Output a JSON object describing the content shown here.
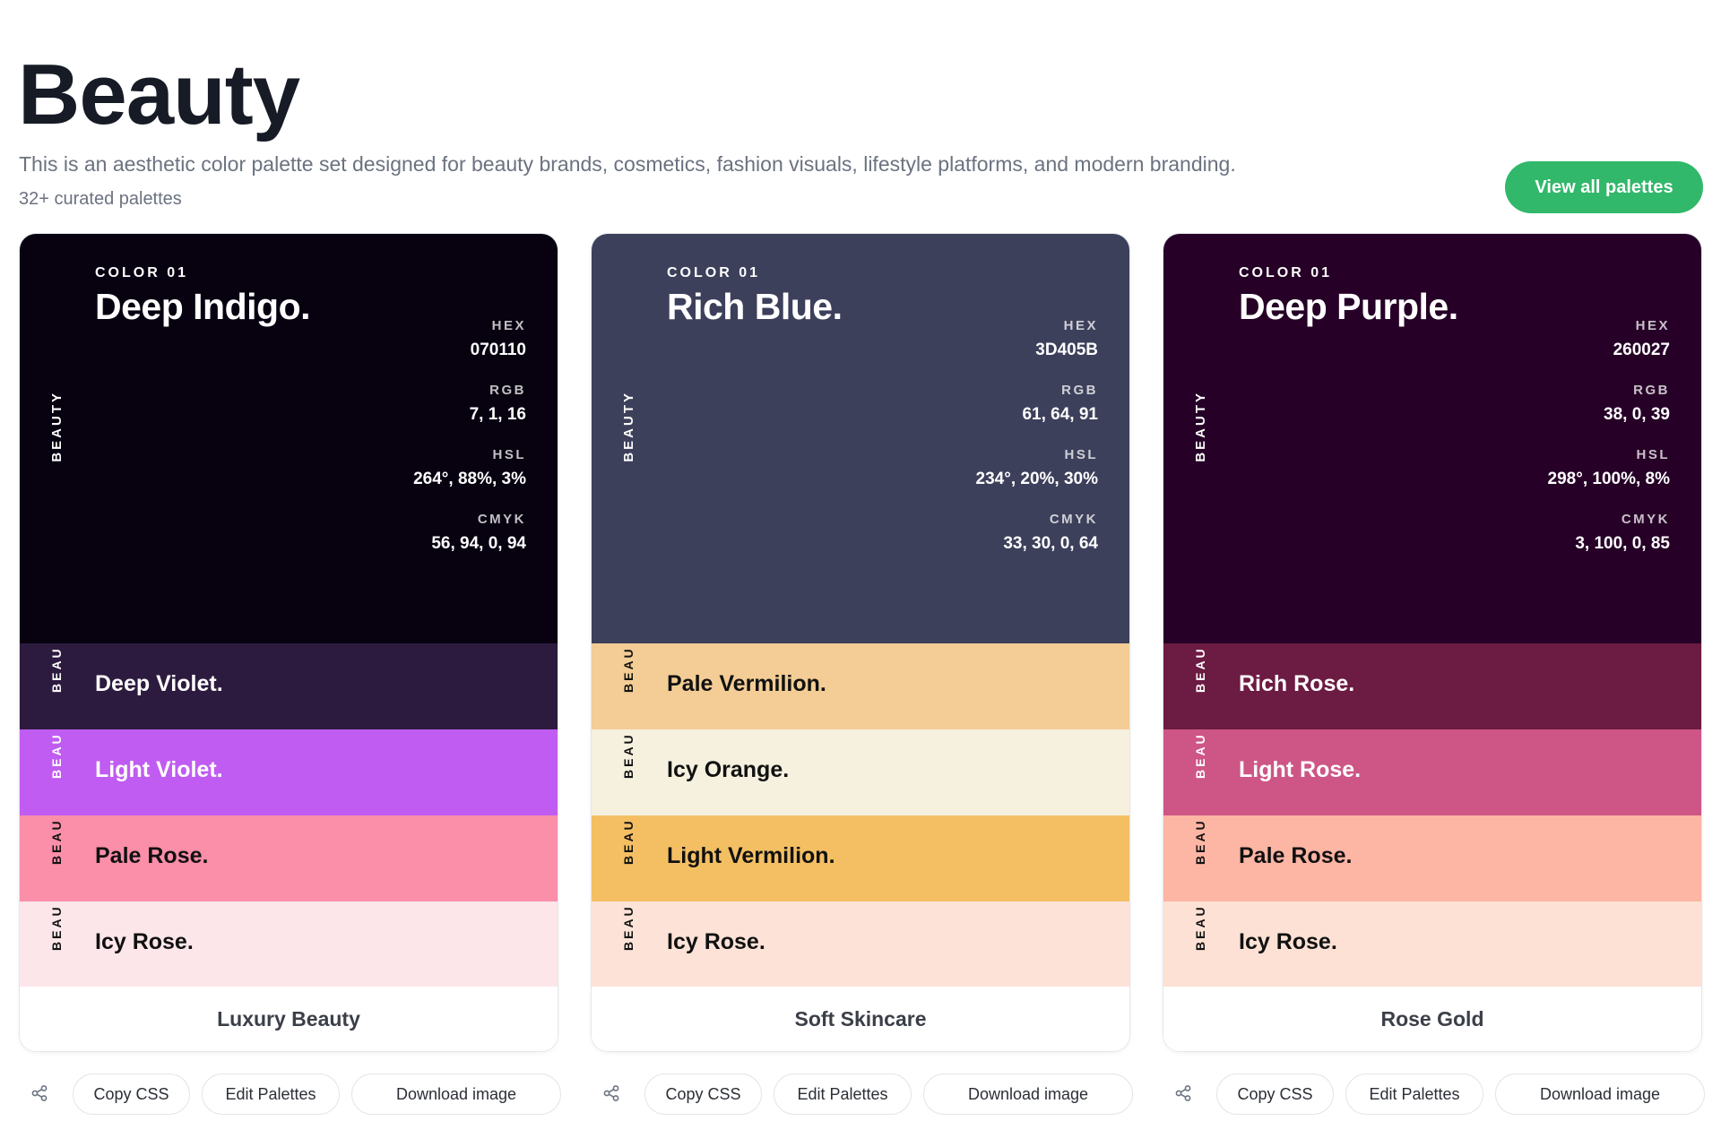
{
  "header": {
    "title": "Beauty",
    "description": "This is an aesthetic color palette set designed for beauty brands, cosmetics, fashion visuals, lifestyle platforms, and modern branding.",
    "count": "32+ curated palettes",
    "view_all_label": "View all palettes",
    "view_all_color": "#31b86a"
  },
  "cards": [
    {
      "side_label": "BEAUTY",
      "kicker": "COLOR 01",
      "name": "Deep Indigo.",
      "color": "#070110",
      "text_color": "#ffffff",
      "specs": [
        {
          "label": "HEX",
          "value": "070110"
        },
        {
          "label": "RGB",
          "value": "7, 1, 16"
        },
        {
          "label": "HSL",
          "value": "264°, 88%, 3%"
        },
        {
          "label": "CMYK",
          "value": "56, 94, 0, 94"
        }
      ],
      "bands": [
        {
          "side_label": "BEAU",
          "name": "Deep Violet.",
          "color": "#2d1b3f",
          "text_color": "#ffffff"
        },
        {
          "side_label": "BEAU",
          "name": "Light Violet.",
          "color": "#c05cf1",
          "text_color": "#ffffff"
        },
        {
          "side_label": "BEAU",
          "name": "Pale Rose.",
          "color": "#fb8ea9",
          "text_color": "#111111"
        },
        {
          "side_label": "BEAU",
          "name": "Icy Rose.",
          "color": "#fde6ea",
          "text_color": "#111111"
        }
      ],
      "title": "Luxury Beauty"
    },
    {
      "side_label": "BEAUTY",
      "kicker": "COLOR 01",
      "name": "Rich Blue.",
      "color": "#3d405b",
      "text_color": "#ffffff",
      "specs": [
        {
          "label": "HEX",
          "value": "3D405B"
        },
        {
          "label": "RGB",
          "value": "61, 64, 91"
        },
        {
          "label": "HSL",
          "value": "234°, 20%, 30%"
        },
        {
          "label": "CMYK",
          "value": "33, 30, 0, 64"
        }
      ],
      "bands": [
        {
          "side_label": "BEAU",
          "name": "Pale Vermilion.",
          "color": "#f3cd95",
          "text_color": "#111111"
        },
        {
          "side_label": "BEAU",
          "name": "Icy Orange.",
          "color": "#f6f0df",
          "text_color": "#111111"
        },
        {
          "side_label": "BEAU",
          "name": "Light Vermilion.",
          "color": "#f4bf63",
          "text_color": "#111111"
        },
        {
          "side_label": "BEAU",
          "name": "Icy Rose.",
          "color": "#fde2d7",
          "text_color": "#111111"
        }
      ],
      "title": "Soft Skincare"
    },
    {
      "side_label": "BEAUTY",
      "kicker": "COLOR 01",
      "name": "Deep Purple.",
      "color": "#260027",
      "text_color": "#ffffff",
      "specs": [
        {
          "label": "HEX",
          "value": "260027"
        },
        {
          "label": "RGB",
          "value": "38, 0, 39"
        },
        {
          "label": "HSL",
          "value": "298°, 100%, 8%"
        },
        {
          "label": "CMYK",
          "value": "3, 100, 0, 85"
        }
      ],
      "bands": [
        {
          "side_label": "BEAU",
          "name": "Rich Rose.",
          "color": "#6c1b42",
          "text_color": "#ffffff"
        },
        {
          "side_label": "BEAU",
          "name": "Light Rose.",
          "color": "#cd5686",
          "text_color": "#ffffff"
        },
        {
          "side_label": "BEAU",
          "name": "Pale Rose.",
          "color": "#fdb5a4",
          "text_color": "#111111"
        },
        {
          "side_label": "BEAU",
          "name": "Icy Rose.",
          "color": "#fde1d4",
          "text_color": "#111111"
        }
      ],
      "title": "Rose Gold"
    }
  ],
  "actions": {
    "share_icon": "share-icon",
    "copy_css_label": "Copy CSS",
    "edit_label": "Edit Palettes",
    "download_label": "Download image"
  }
}
